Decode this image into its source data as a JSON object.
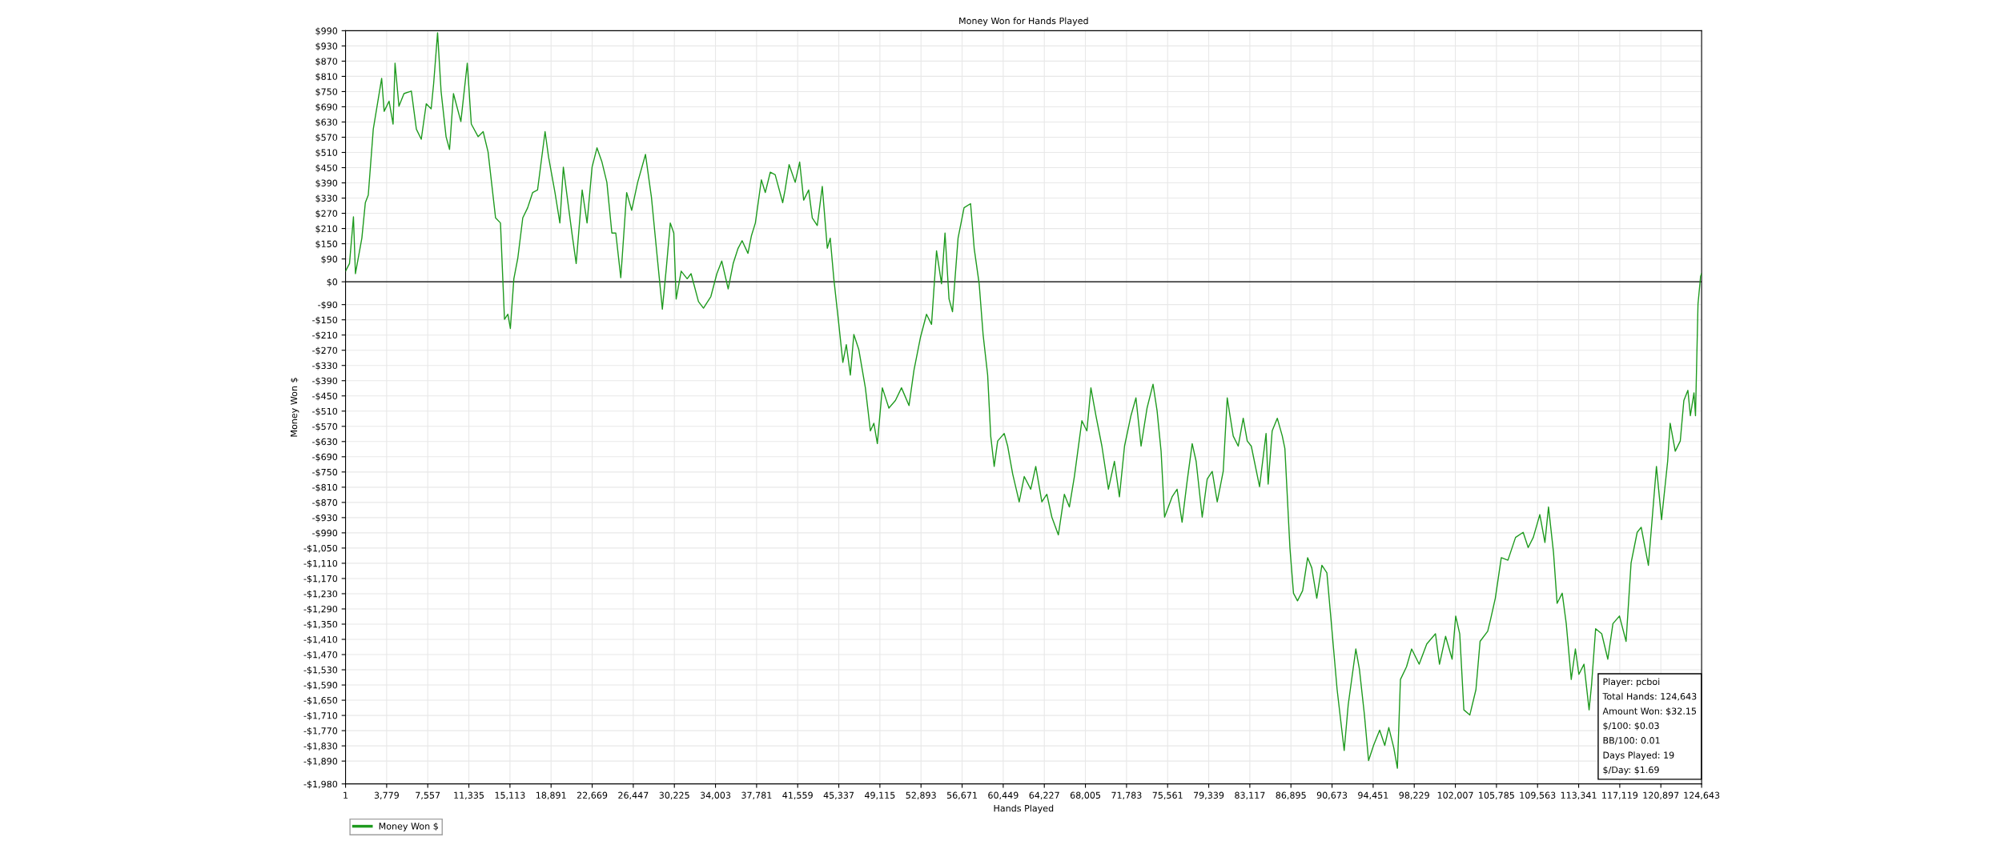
{
  "chart_data": {
    "type": "line",
    "title": "Money Won for Hands Played",
    "xlabel": "Hands Played",
    "ylabel": "Money Won $",
    "x": [
      1,
      364,
      728,
      910,
      1500,
      1820,
      2090,
      2550,
      3320,
      3550,
      4000,
      4370,
      4550,
      4910,
      5370,
      6050,
      6510,
      6960,
      7420,
      7870,
      8100,
      8460,
      8780,
      9240,
      9560,
      9920,
      10600,
      11190,
      11560,
      12190,
      12650,
      13100,
      13790,
      14240,
      14610,
      14920,
      15150,
      15470,
      15830,
      16290,
      16740,
      17200,
      17650,
      18340,
      18660,
      19250,
      19700,
      20020,
      20380,
      20840,
      21200,
      21750,
      22200,
      22660,
      23110,
      23570,
      24020,
      24480,
      24840,
      25300,
      25840,
      26300,
      26850,
      27570,
      28120,
      28570,
      29120,
      29480,
      29850,
      30170,
      30390,
      30850,
      31400,
      31760,
      32440,
      32900,
      33580,
      34130,
      34580,
      35170,
      35630,
      36080,
      36450,
      36990,
      37310,
      37670,
      38220,
      38580,
      39040,
      39490,
      40180,
      40400,
      40770,
      41330,
      41740,
      42110,
      42570,
      42900,
      43360,
      43820,
      44280,
      44550,
      44880,
      45340,
      45710,
      46030,
      46400,
      46720,
      47180,
      47780,
      48240,
      48560,
      48880,
      49340,
      49940,
      50540,
      51100,
      51790,
      52250,
      52850,
      53400,
      53860,
      54320,
      54780,
      55100,
      55470,
      55790,
      56300,
      56850,
      57450,
      57780,
      58240,
      58600,
      59020,
      59300,
      59620,
      59940,
      60540,
      60860,
      61320,
      61920,
      62380,
      62980,
      63440,
      64000,
      64460,
      64920,
      65520,
      66070,
      66530,
      66990,
      67680,
      68140,
      68510,
      68970,
      69520,
      70120,
      70670,
      71130,
      71600,
      72190,
      72650,
      73120,
      73670,
      74220,
      74590,
      74960,
      75280,
      75970,
      76430,
      76890,
      77350,
      77820,
      78180,
      78740,
      79200,
      79660,
      80120,
      80670,
      81040,
      81590,
      82050,
      82510,
      82880,
      83250,
      84010,
      84610,
      84800,
      85170,
      85640,
      86100,
      86340,
      86800,
      87130,
      87500,
      87970,
      88430,
      88810,
      89270,
      89740,
      90200,
      90530,
      91140,
      91790,
      92160,
      92860,
      93190,
      93650,
      94030,
      94490,
      95050,
      95520,
      95890,
      96350,
      96680,
      96960,
      97520,
      97990,
      98680,
      99380,
      100180,
      100550,
      101110,
      101710,
      102040,
      102410,
      102790,
      103340,
      103900,
      104280,
      104980,
      105210,
      105680,
      106230,
      106840,
      107540,
      108240,
      108700,
      109170,
      109770,
      110240,
      110570,
      111030,
      111360,
      111830,
      112200,
      112660,
      113040,
      113360,
      113830,
      114300,
      114530,
      114900,
      115460,
      116020,
      116490,
      117090,
      117700,
      118160,
      118720,
      119090,
      119750,
      120490,
      120960,
      121520,
      121750,
      122220,
      122680,
      123010,
      123380,
      123610,
      123940,
      124080,
      124310,
      124550,
      124643
    ],
    "series": [
      {
        "name": "Money Won $",
        "color": "#1e9a1e",
        "values": [
          42,
          72,
          256,
          32,
          172,
          312,
          342,
          602,
          802,
          672,
          712,
          622,
          862,
          692,
          742,
          752,
          602,
          562,
          702,
          682,
          782,
          982,
          752,
          572,
          522,
          742,
          632,
          862,
          622,
          572,
          592,
          512,
          252,
          232,
          -148,
          -128,
          -184,
          12,
          92,
          252,
          292,
          352,
          362,
          592,
          492,
          352,
          232,
          452,
          332,
          182,
          72,
          362,
          232,
          452,
          528,
          472,
          392,
          192,
          192,
          16,
          352,
          282,
          392,
          502,
          332,
          132,
          -108,
          52,
          232,
          192,
          -68,
          42,
          12,
          32,
          -78,
          -104,
          -58,
          32,
          82,
          -28,
          72,
          132,
          162,
          112,
          182,
          232,
          402,
          352,
          432,
          422,
          312,
          362,
          462,
          392,
          472,
          322,
          362,
          252,
          222,
          376,
          132,
          172,
          12,
          -168,
          -318,
          -248,
          -368,
          -208,
          -268,
          -418,
          -588,
          -558,
          -638,
          -418,
          -498,
          -468,
          -418,
          -488,
          -348,
          -218,
          -128,
          -168,
          122,
          -8,
          192,
          -68,
          -118,
          172,
          292,
          308,
          132,
          -8,
          -208,
          -368,
          -608,
          -728,
          -628,
          -598,
          -648,
          -758,
          -868,
          -768,
          -818,
          -728,
          -868,
          -838,
          -928,
          -998,
          -838,
          -888,
          -768,
          -548,
          -588,
          -418,
          -528,
          -648,
          -818,
          -708,
          -848,
          -648,
          -528,
          -458,
          -648,
          -498,
          -404,
          -508,
          -668,
          -928,
          -848,
          -818,
          -948,
          -788,
          -638,
          -708,
          -928,
          -778,
          -748,
          -868,
          -748,
          -458,
          -608,
          -648,
          -538,
          -628,
          -648,
          -808,
          -598,
          -798,
          -588,
          -538,
          -608,
          -658,
          -1048,
          -1228,
          -1258,
          -1218,
          -1088,
          -1128,
          -1248,
          -1118,
          -1148,
          -1308,
          -1608,
          -1848,
          -1668,
          -1448,
          -1528,
          -1708,
          -1888,
          -1828,
          -1768,
          -1828,
          -1758,
          -1838,
          -1918,
          -1568,
          -1518,
          -1448,
          -1508,
          -1428,
          -1388,
          -1508,
          -1398,
          -1488,
          -1318,
          -1388,
          -1688,
          -1708,
          -1608,
          -1418,
          -1378,
          -1338,
          -1248,
          -1088,
          -1098,
          -1008,
          -988,
          -1048,
          -1008,
          -918,
          -1028,
          -888,
          -1068,
          -1268,
          -1228,
          -1348,
          -1568,
          -1448,
          -1548,
          -1508,
          -1688,
          -1588,
          -1368,
          -1388,
          -1488,
          -1348,
          -1318,
          -1418,
          -1108,
          -988,
          -968,
          -1118,
          -728,
          -938,
          -708,
          -558,
          -668,
          -628,
          -468,
          -428,
          -528,
          -438,
          -528,
          -88,
          22,
          32
        ]
      }
    ],
    "xlim": [
      1,
      124643
    ],
    "ylim": [
      -1980,
      990
    ],
    "xticks": [
      1,
      {
        "value": 3779,
        "label": "3,779"
      },
      {
        "value": 7557,
        "label": "7,557"
      },
      {
        "value": 11335,
        "label": "11,335"
      },
      {
        "value": 15113,
        "label": "15,113"
      },
      {
        "value": 18891,
        "label": "18,891"
      },
      {
        "value": 22669,
        "label": "22,669"
      },
      {
        "value": 26447,
        "label": "26,447"
      },
      {
        "value": 30225,
        "label": "30,225"
      },
      {
        "value": 34003,
        "label": "34,003"
      },
      {
        "value": 37781,
        "label": "37,781"
      },
      {
        "value": 41559,
        "label": "41,559"
      },
      {
        "value": 45337,
        "label": "45,337"
      },
      {
        "value": 49115,
        "label": "49,115"
      },
      {
        "value": 52893,
        "label": "52,893"
      },
      {
        "value": 56671,
        "label": "56,671"
      },
      {
        "value": 60449,
        "label": "60,449"
      },
      {
        "value": 64227,
        "label": "64,227"
      },
      {
        "value": 68005,
        "label": "68,005"
      },
      {
        "value": 71783,
        "label": "71,783"
      },
      {
        "value": 75561,
        "label": "75,561"
      },
      {
        "value": 79339,
        "label": "79,339"
      },
      {
        "value": 83117,
        "label": "83,117"
      },
      {
        "value": 86895,
        "label": "86,895"
      },
      {
        "value": 90673,
        "label": "90,673"
      },
      {
        "value": 94451,
        "label": "94,451"
      },
      {
        "value": 98229,
        "label": "98,229"
      },
      {
        "value": 102007,
        "label": "102,007"
      },
      {
        "value": 105785,
        "label": "105,785"
      },
      {
        "value": 109563,
        "label": "109,563"
      },
      {
        "value": 113341,
        "label": "113,341"
      },
      {
        "value": 117119,
        "label": "117,119"
      },
      {
        "value": 120897,
        "label": "120,897"
      },
      {
        "value": 124643,
        "label": "124,643"
      }
    ],
    "yticks": [
      {
        "value": 990,
        "label": "$990"
      },
      {
        "value": 930,
        "label": "$930"
      },
      {
        "value": 870,
        "label": "$870"
      },
      {
        "value": 810,
        "label": "$810"
      },
      {
        "value": 750,
        "label": "$750"
      },
      {
        "value": 690,
        "label": "$690"
      },
      {
        "value": 630,
        "label": "$630"
      },
      {
        "value": 570,
        "label": "$570"
      },
      {
        "value": 510,
        "label": "$510"
      },
      {
        "value": 450,
        "label": "$450"
      },
      {
        "value": 390,
        "label": "$390"
      },
      {
        "value": 330,
        "label": "$330"
      },
      {
        "value": 270,
        "label": "$270"
      },
      {
        "value": 210,
        "label": "$210"
      },
      {
        "value": 150,
        "label": "$150"
      },
      {
        "value": 90,
        "label": "$90"
      },
      {
        "value": 0,
        "label": "$0"
      },
      {
        "value": -90,
        "label": "-$90"
      },
      {
        "value": -150,
        "label": "-$150"
      },
      {
        "value": -210,
        "label": "-$210"
      },
      {
        "value": -270,
        "label": "-$270"
      },
      {
        "value": -330,
        "label": "-$330"
      },
      {
        "value": -390,
        "label": "-$390"
      },
      {
        "value": -450,
        "label": "-$450"
      },
      {
        "value": -510,
        "label": "-$510"
      },
      {
        "value": -570,
        "label": "-$570"
      },
      {
        "value": -630,
        "label": "-$630"
      },
      {
        "value": -690,
        "label": "-$690"
      },
      {
        "value": -750,
        "label": "-$750"
      },
      {
        "value": -810,
        "label": "-$810"
      },
      {
        "value": -870,
        "label": "-$870"
      },
      {
        "value": -930,
        "label": "-$930"
      },
      {
        "value": -990,
        "label": "-$990"
      },
      {
        "value": -1050,
        "label": "-$1,050"
      },
      {
        "value": -1110,
        "label": "-$1,110"
      },
      {
        "value": -1170,
        "label": "-$1,170"
      },
      {
        "value": -1230,
        "label": "-$1,230"
      },
      {
        "value": -1290,
        "label": "-$1,290"
      },
      {
        "value": -1350,
        "label": "-$1,350"
      },
      {
        "value": -1410,
        "label": "-$1,410"
      },
      {
        "value": -1470,
        "label": "-$1,470"
      },
      {
        "value": -1530,
        "label": "-$1,530"
      },
      {
        "value": -1590,
        "label": "-$1,590"
      },
      {
        "value": -1650,
        "label": "-$1,650"
      },
      {
        "value": -1710,
        "label": "-$1,710"
      },
      {
        "value": -1770,
        "label": "-$1,770"
      },
      {
        "value": -1830,
        "label": "-$1,830"
      },
      {
        "value": -1890,
        "label": "-$1,890"
      },
      {
        "value": -1980,
        "label": "-$1,980"
      }
    ],
    "ref_lines": [
      {
        "axis": "y",
        "value": 0,
        "color": "#000000"
      }
    ],
    "annotations": [
      "Player: pcboi",
      "Total Hands: 124,643",
      "Amount Won: $32.15",
      "$/100: $0.03",
      "BB/100: 0.01",
      "Days Played: 19",
      "$/Day: $1.69"
    ],
    "grid": true,
    "legend": "bottom left",
    "line_style": "solid",
    "marker": "none"
  }
}
